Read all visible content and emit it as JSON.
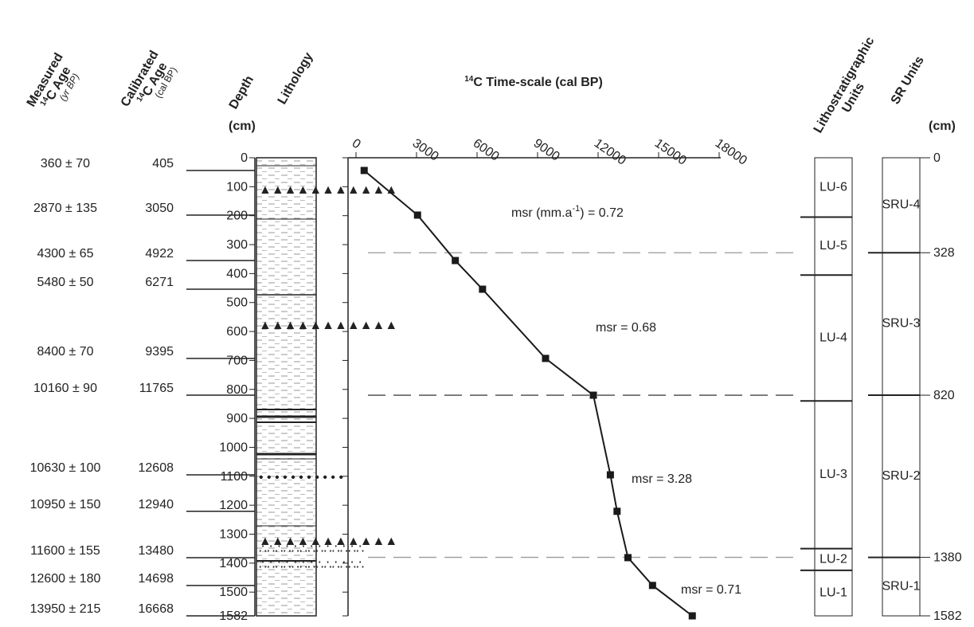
{
  "headers": {
    "measured": {
      "line1": "Measured",
      "sup": "14",
      "line2": "C Age",
      "line3": "(yr BP)"
    },
    "calibrated": {
      "line1": "Calibrated",
      "sup": "14",
      "line2": "C Age",
      "line3": "(cal BP)"
    },
    "depth": "Depth",
    "depth_unit": "(cm)",
    "lithology": "Lithology",
    "litho_units": [
      "Lithostratigraphic",
      "Units"
    ],
    "sr_units": "SR Units",
    "sr_unit": "(cm)"
  },
  "measured_ages": [
    "360 ± 70",
    "2870 ± 135",
    "4300 ± 65",
    "5480 ± 50",
    "8400 ± 70",
    "10160 ± 90",
    "10630 ± 100",
    "10950 ± 150",
    "11600 ± 155",
    "12600 ± 180",
    "13950 ± 215"
  ],
  "chart_data": {
    "type": "line",
    "title": {
      "sup": "14",
      "text": "C Time-scale (cal BP)"
    },
    "x": [
      405,
      3050,
      4922,
      6271,
      9395,
      11765,
      12608,
      12940,
      13480,
      14698,
      16668
    ],
    "series": [
      {
        "values": [
          44,
          198,
          355,
          454,
          693,
          820,
          1095,
          1221,
          1381,
          1477,
          1582
        ],
        "color": "#1a1a1a"
      }
    ],
    "xlim": [
      0,
      18000
    ],
    "xticks": [
      0,
      3000,
      6000,
      9000,
      12000,
      15000,
      18000
    ],
    "ylim": [
      0,
      1582
    ],
    "y_inverted": true,
    "yticks": [
      0,
      100,
      200,
      300,
      400,
      500,
      600,
      700,
      800,
      900,
      1000,
      1100,
      1200,
      1300,
      1400,
      1500,
      1582
    ],
    "annotations": [
      {
        "text": "msr (mm.a",
        "sup": "-1",
        "after": ") = 0.72"
      },
      {
        "text": "msr = 0.68"
      },
      {
        "text": "msr = 3.28"
      },
      {
        "text": "msr = 0.71"
      }
    ]
  },
  "litho_units": [
    {
      "name": "LU-6",
      "top": 0,
      "bottom": 205
    },
    {
      "name": "LU-5",
      "top": 205,
      "bottom": 405
    },
    {
      "name": "LU-4",
      "top": 405,
      "bottom": 840
    },
    {
      "name": "LU-3",
      "top": 840,
      "bottom": 1350
    },
    {
      "name": "LU-2",
      "top": 1350,
      "bottom": 1425
    },
    {
      "name": "LU-1",
      "top": 1425,
      "bottom": 1582
    }
  ],
  "sr_units": [
    {
      "name": "SRU-4",
      "top": 0,
      "bottom": 328
    },
    {
      "name": "SRU-3",
      "top": 328,
      "bottom": 820
    },
    {
      "name": "SRU-2",
      "top": 820,
      "bottom": 1380
    },
    {
      "name": "SRU-1",
      "top": 1380,
      "bottom": 1582
    }
  ],
  "sr_boundaries": [
    0,
    328,
    820,
    1380,
    1582
  ]
}
